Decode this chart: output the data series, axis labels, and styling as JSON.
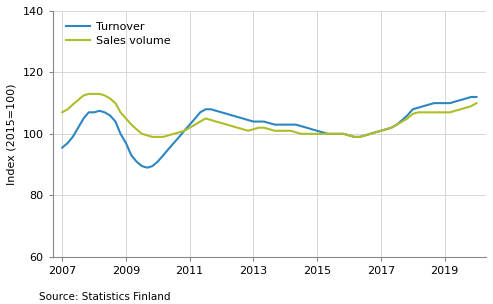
{
  "title": "",
  "ylabel": "Index (2015=100)",
  "source_text": "Source: Statistics Finland",
  "ylim": [
    60,
    140
  ],
  "yticks": [
    60,
    80,
    100,
    120,
    140
  ],
  "xlim": [
    2006.7,
    2020.3
  ],
  "xticks": [
    2007,
    2009,
    2011,
    2013,
    2015,
    2017,
    2019
  ],
  "xtick_labels": [
    "2007",
    "2009",
    "2011",
    "2013",
    "2015",
    "2017",
    "2019"
  ],
  "turnover_color": "#2E86C1",
  "sales_color": "#ADBE28",
  "legend_labels": [
    "Turnover",
    "Sales volume"
  ],
  "turnover_x": [
    2007.0,
    2007.17,
    2007.33,
    2007.5,
    2007.67,
    2007.83,
    2008.0,
    2008.17,
    2008.33,
    2008.5,
    2008.67,
    2008.83,
    2009.0,
    2009.17,
    2009.33,
    2009.5,
    2009.67,
    2009.83,
    2010.0,
    2010.17,
    2010.33,
    2010.5,
    2010.67,
    2010.83,
    2011.0,
    2011.17,
    2011.33,
    2011.5,
    2011.67,
    2011.83,
    2012.0,
    2012.17,
    2012.33,
    2012.5,
    2012.67,
    2012.83,
    2013.0,
    2013.17,
    2013.33,
    2013.5,
    2013.67,
    2013.83,
    2014.0,
    2014.17,
    2014.33,
    2014.5,
    2014.67,
    2014.83,
    2015.0,
    2015.17,
    2015.33,
    2015.5,
    2015.67,
    2015.83,
    2016.0,
    2016.17,
    2016.33,
    2016.5,
    2016.67,
    2016.83,
    2017.0,
    2017.17,
    2017.33,
    2017.5,
    2017.67,
    2017.83,
    2018.0,
    2018.17,
    2018.33,
    2018.5,
    2018.67,
    2018.83,
    2019.0,
    2019.17,
    2019.33,
    2019.5,
    2019.67,
    2019.83,
    2020.0
  ],
  "turnover_y": [
    95.5,
    97,
    99,
    102,
    105,
    107,
    107,
    107.5,
    107,
    106,
    104,
    100,
    97,
    93,
    91,
    89.5,
    89,
    89.5,
    91,
    93,
    95,
    97,
    99,
    101,
    103,
    105,
    107,
    108,
    108,
    107.5,
    107,
    106.5,
    106,
    105.5,
    105,
    104.5,
    104,
    104,
    104,
    103.5,
    103,
    103,
    103,
    103,
    103,
    102.5,
    102,
    101.5,
    101,
    100.5,
    100,
    100,
    100,
    100,
    99.5,
    99,
    99,
    99.5,
    100,
    100.5,
    101,
    101.5,
    102,
    103,
    104.5,
    106,
    108,
    108.5,
    109,
    109.5,
    110,
    110,
    110,
    110,
    110.5,
    111,
    111.5,
    112,
    112
  ],
  "sales_x": [
    2007.0,
    2007.17,
    2007.33,
    2007.5,
    2007.67,
    2007.83,
    2008.0,
    2008.17,
    2008.33,
    2008.5,
    2008.67,
    2008.83,
    2009.0,
    2009.17,
    2009.33,
    2009.5,
    2009.67,
    2009.83,
    2010.0,
    2010.17,
    2010.33,
    2010.5,
    2010.67,
    2010.83,
    2011.0,
    2011.17,
    2011.33,
    2011.5,
    2011.67,
    2011.83,
    2012.0,
    2012.17,
    2012.33,
    2012.5,
    2012.67,
    2012.83,
    2013.0,
    2013.17,
    2013.33,
    2013.5,
    2013.67,
    2013.83,
    2014.0,
    2014.17,
    2014.33,
    2014.5,
    2014.67,
    2014.83,
    2015.0,
    2015.17,
    2015.33,
    2015.5,
    2015.67,
    2015.83,
    2016.0,
    2016.17,
    2016.33,
    2016.5,
    2016.67,
    2016.83,
    2017.0,
    2017.17,
    2017.33,
    2017.5,
    2017.67,
    2017.83,
    2018.0,
    2018.17,
    2018.33,
    2018.5,
    2018.67,
    2018.83,
    2019.0,
    2019.17,
    2019.33,
    2019.5,
    2019.67,
    2019.83,
    2020.0
  ],
  "sales_y": [
    107,
    108,
    109.5,
    111,
    112.5,
    113,
    113,
    113,
    112.5,
    111.5,
    110,
    107,
    105,
    103,
    101.5,
    100,
    99.5,
    99,
    99,
    99,
    99.5,
    100,
    100.5,
    101,
    102,
    103,
    104,
    105,
    104.5,
    104,
    103.5,
    103,
    102.5,
    102,
    101.5,
    101,
    101.5,
    102,
    102,
    101.5,
    101,
    101,
    101,
    101,
    100.5,
    100,
    100,
    100,
    100,
    100,
    100,
    100,
    100,
    100,
    99.5,
    99,
    99,
    99.5,
    100,
    100.5,
    101,
    101.5,
    102,
    103,
    104,
    105,
    106.5,
    107,
    107,
    107,
    107,
    107,
    107,
    107,
    107.5,
    108,
    108.5,
    109,
    110
  ]
}
